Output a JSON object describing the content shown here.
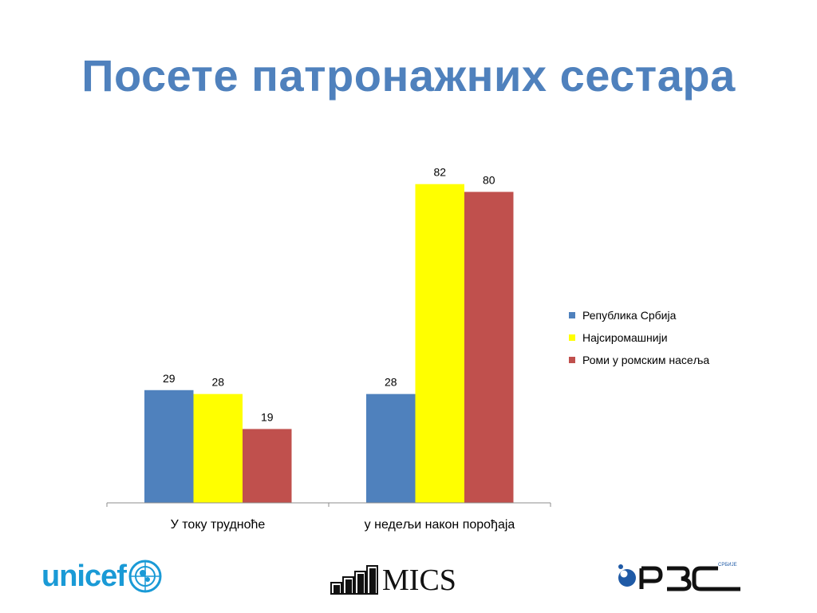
{
  "slide": {
    "title": "Посете патронажних сестара"
  },
  "chart_data": {
    "type": "bar",
    "categories": [
      "У току трудноће",
      "у недељи након порођаја"
    ],
    "series": [
      {
        "name": "Република Србија",
        "values": [
          29,
          28
        ],
        "color": "#4f81bd"
      },
      {
        "name": "Најсиромашнији",
        "values": [
          28,
          82
        ],
        "color": "#ffff00"
      },
      {
        "name": "Роми у ромским насеља",
        "values": [
          19,
          80
        ],
        "color": "#c0504d"
      }
    ],
    "title": "",
    "xlabel": "",
    "ylabel": "",
    "ylim": [
      0,
      100
    ],
    "grid": false,
    "legend_position": "right"
  },
  "logos": {
    "unicef": "unicef",
    "mics": "MICS",
    "rzs": "РЗС",
    "rzs_small": "СРБИЈЕ"
  }
}
